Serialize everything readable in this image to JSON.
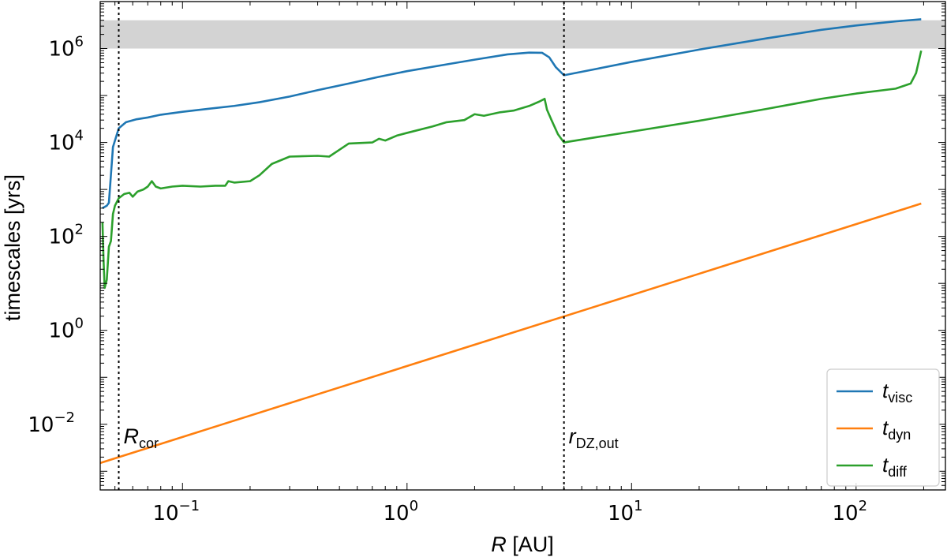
{
  "chart_data": {
    "type": "line",
    "x_scale": "log",
    "y_scale": "log",
    "xlim": [
      0.043,
      250
    ],
    "ylim": [
      0.0004,
      10000000
    ],
    "xlabel": {
      "italic": "R",
      "rest": " [AU]"
    },
    "ylabel": "timescales [yrs]",
    "x_ticks": [
      {
        "value": 0.1,
        "base": "10",
        "exp": "−1"
      },
      {
        "value": 1,
        "base": "10",
        "exp": "0"
      },
      {
        "value": 10,
        "base": "10",
        "exp": "1"
      },
      {
        "value": 100,
        "base": "10",
        "exp": "2"
      }
    ],
    "y_ticks": [
      {
        "value": 0.01,
        "base": "10",
        "exp": "−2"
      },
      {
        "value": 1,
        "base": "10",
        "exp": "0"
      },
      {
        "value": 100,
        "base": "10",
        "exp": "2"
      },
      {
        "value": 10000,
        "base": "10",
        "exp": "4"
      },
      {
        "value": 1000000,
        "base": "10",
        "exp": "6"
      }
    ],
    "shaded_band": {
      "y_range": [
        1000000,
        4000000
      ],
      "color": "#d3d3d3"
    },
    "vertical_lines": [
      {
        "x": 0.052,
        "label_main": "R",
        "label_sub": "cor"
      },
      {
        "x": 5.0,
        "label_main": "r",
        "label_sub": "DZ,out"
      }
    ],
    "series": [
      {
        "name_main": "t",
        "name_sub": "visc",
        "color": "#1f77b4",
        "points": [
          [
            0.044,
            400
          ],
          [
            0.046,
            450
          ],
          [
            0.047,
            520
          ],
          [
            0.049,
            8000
          ],
          [
            0.052,
            20000
          ],
          [
            0.056,
            27000
          ],
          [
            0.062,
            31000
          ],
          [
            0.07,
            34000
          ],
          [
            0.08,
            39000
          ],
          [
            0.1,
            45000
          ],
          [
            0.13,
            52000
          ],
          [
            0.17,
            60000
          ],
          [
            0.22,
            72000
          ],
          [
            0.3,
            95000
          ],
          [
            0.4,
            130000
          ],
          [
            0.55,
            180000
          ],
          [
            0.75,
            250000
          ],
          [
            1.0,
            330000
          ],
          [
            1.5,
            460000
          ],
          [
            2.0,
            580000
          ],
          [
            2.8,
            750000
          ],
          [
            3.5,
            820000
          ],
          [
            4.0,
            810000
          ],
          [
            4.3,
            650000
          ],
          [
            4.6,
            400000
          ],
          [
            5.0,
            270000
          ],
          [
            7,
            370000
          ],
          [
            10,
            520000
          ],
          [
            20,
            950000
          ],
          [
            40,
            1650000
          ],
          [
            70,
            2500000
          ],
          [
            100,
            3100000
          ],
          [
            150,
            3800000
          ],
          [
            195,
            4200000
          ]
        ]
      },
      {
        "name_main": "t",
        "name_sub": "dyn",
        "color": "#ff7f0e",
        "points": [
          [
            0.043,
            0.0015
          ],
          [
            195,
            500
          ]
        ]
      },
      {
        "name_main": "t",
        "name_sub": "diff",
        "color": "#2ca02c",
        "points": [
          [
            0.044,
            200
          ],
          [
            0.0445,
            30
          ],
          [
            0.045,
            8
          ],
          [
            0.046,
            12
          ],
          [
            0.047,
            60
          ],
          [
            0.048,
            80
          ],
          [
            0.049,
            300
          ],
          [
            0.05,
            450
          ],
          [
            0.052,
            650
          ],
          [
            0.055,
            800
          ],
          [
            0.058,
            850
          ],
          [
            0.06,
            700
          ],
          [
            0.063,
            900
          ],
          [
            0.067,
            1000
          ],
          [
            0.07,
            1150
          ],
          [
            0.073,
            1500
          ],
          [
            0.076,
            1150
          ],
          [
            0.08,
            1050
          ],
          [
            0.09,
            1150
          ],
          [
            0.1,
            1200
          ],
          [
            0.12,
            1150
          ],
          [
            0.14,
            1200
          ],
          [
            0.155,
            1200
          ],
          [
            0.16,
            1500
          ],
          [
            0.17,
            1400
          ],
          [
            0.2,
            1500
          ],
          [
            0.22,
            2000
          ],
          [
            0.25,
            3500
          ],
          [
            0.3,
            5000
          ],
          [
            0.4,
            5200
          ],
          [
            0.45,
            5000
          ],
          [
            0.5,
            7000
          ],
          [
            0.55,
            9500
          ],
          [
            0.7,
            10000
          ],
          [
            0.75,
            12000
          ],
          [
            0.8,
            11000
          ],
          [
            0.9,
            14000
          ],
          [
            1.0,
            16000
          ],
          [
            1.3,
            22000
          ],
          [
            1.5,
            27000
          ],
          [
            1.8,
            30000
          ],
          [
            2.0,
            40000
          ],
          [
            2.2,
            37000
          ],
          [
            2.6,
            44000
          ],
          [
            3.0,
            48000
          ],
          [
            3.5,
            60000
          ],
          [
            3.9,
            75000
          ],
          [
            4.1,
            85000
          ],
          [
            4.2,
            50000
          ],
          [
            4.4,
            30000
          ],
          [
            4.7,
            15000
          ],
          [
            5.0,
            10000
          ],
          [
            7,
            13000
          ],
          [
            10,
            17000
          ],
          [
            20,
            29000
          ],
          [
            40,
            52000
          ],
          [
            70,
            85000
          ],
          [
            100,
            110000
          ],
          [
            150,
            140000
          ],
          [
            175,
            180000
          ],
          [
            185,
            300000
          ],
          [
            195,
            900000
          ]
        ]
      }
    ],
    "legend_position": "lower-right"
  }
}
